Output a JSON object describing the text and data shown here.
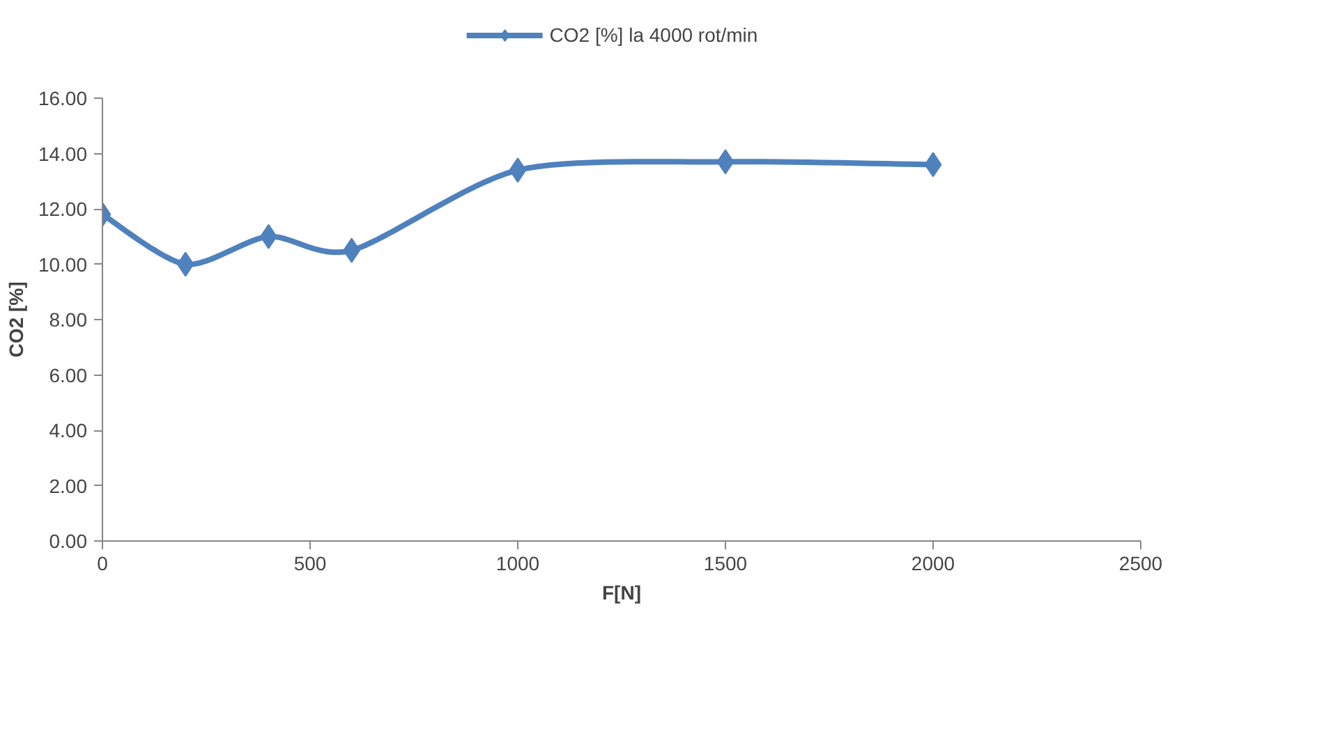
{
  "chart_data": {
    "type": "line",
    "xlabel": "F[N]",
    "ylabel": "CO2 [%]",
    "x": [
      0,
      200,
      400,
      600,
      1000,
      1500,
      2000
    ],
    "series": [
      {
        "name": "CO2 [%] la 4000 rot/min",
        "color": "#4f81bd",
        "values": [
          11.8,
          10.0,
          11.0,
          10.5,
          13.4,
          13.7,
          13.6
        ]
      }
    ],
    "xlim": [
      0,
      2500
    ],
    "xticks": [
      0,
      500,
      1000,
      1500,
      2000,
      2500
    ],
    "ylim": [
      0,
      16
    ],
    "yticks": [
      {
        "value": 0,
        "label": "0.00"
      },
      {
        "value": 2,
        "label": "2.00"
      },
      {
        "value": 4,
        "label": "4.00"
      },
      {
        "value": 6,
        "label": "6.00"
      },
      {
        "value": 8,
        "label": "8.00"
      },
      {
        "value": 10,
        "label": "10.00"
      },
      {
        "value": 12,
        "label": "12.00"
      },
      {
        "value": 14,
        "label": "14.00"
      },
      {
        "value": 16,
        "label": "16.00"
      }
    ],
    "grid": false,
    "legend": "top",
    "marker": "diamond",
    "line_style": "solid"
  }
}
